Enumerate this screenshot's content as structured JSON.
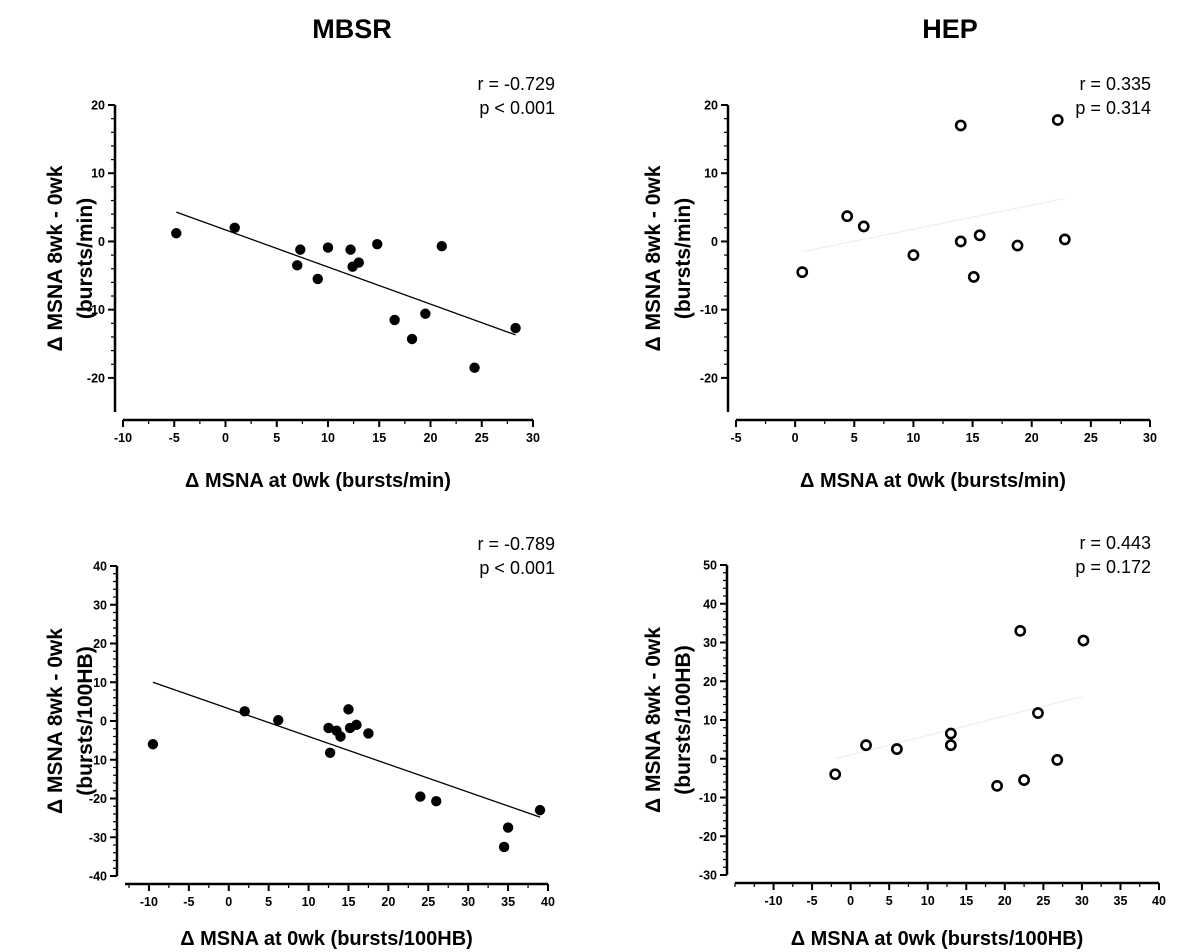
{
  "titles": {
    "left": "MBSR",
    "right": "HEP"
  },
  "chart_data": [
    {
      "type": "scatter",
      "group": "MBSR",
      "ylabel_line1": "Δ MSNA 8wk - 0wk",
      "ylabel_line2": "(bursts/min)",
      "xlabel": "Δ MSNA at 0wk (bursts/min)",
      "xlim": [
        -10,
        30
      ],
      "ylim": [
        -25,
        20
      ],
      "xticks": [
        -10,
        -5,
        0,
        5,
        10,
        15,
        20,
        25,
        30
      ],
      "yticks": [
        -20,
        -10,
        0,
        10,
        20
      ],
      "r_text": "r = -0.729",
      "p_text": "p < 0.001",
      "marker": "filled",
      "fit": [
        [
          -4.8,
          4.3
        ],
        [
          28.3,
          -13.7
        ]
      ],
      "fit_style": "solid",
      "points": [
        [
          -4.8,
          1.2
        ],
        [
          0.9,
          2.0
        ],
        [
          7.0,
          -3.5
        ],
        [
          7.3,
          -1.2
        ],
        [
          9.0,
          -5.5
        ],
        [
          10.0,
          -0.9
        ],
        [
          12.2,
          -1.2
        ],
        [
          12.4,
          -3.7
        ],
        [
          13.0,
          -3.1
        ],
        [
          14.8,
          -0.4
        ],
        [
          16.5,
          -11.5
        ],
        [
          18.2,
          -14.3
        ],
        [
          19.5,
          -10.6
        ],
        [
          21.1,
          -0.7
        ],
        [
          24.3,
          -18.5
        ],
        [
          28.3,
          -12.7
        ]
      ]
    },
    {
      "type": "scatter",
      "group": "HEP",
      "ylabel_line1": "Δ MSNA 8wk - 0wk",
      "ylabel_line2": "(bursts/min)",
      "xlabel": "Δ MSNA at 0wk (bursts/min)",
      "xlim": [
        -5,
        30
      ],
      "ylim": [
        -25,
        20
      ],
      "xticks": [
        -5,
        0,
        5,
        10,
        15,
        20,
        25,
        30
      ],
      "yticks": [
        -20,
        -10,
        0,
        10,
        20
      ],
      "r_text": "r =  0.335",
      "p_text": "p = 0.314",
      "marker": "open",
      "fit": [
        [
          0.6,
          -1.5
        ],
        [
          22.8,
          6.3
        ]
      ],
      "fit_style": "faint",
      "points": [
        [
          0.6,
          -4.5
        ],
        [
          4.4,
          3.7
        ],
        [
          5.8,
          2.2
        ],
        [
          10.0,
          -2.0
        ],
        [
          14.0,
          17.0
        ],
        [
          14.0,
          0.0
        ],
        [
          15.1,
          -5.2
        ],
        [
          15.6,
          0.9
        ],
        [
          18.8,
          -0.6
        ],
        [
          22.2,
          17.8
        ],
        [
          22.8,
          0.3
        ]
      ]
    },
    {
      "type": "scatter",
      "group": "MBSR",
      "ylabel_line1": "Δ MSNA 8wk - 0wk",
      "ylabel_line2": "(bursts/100HB)",
      "xlabel": "Δ MSNA at 0wk (bursts/100HB)",
      "xlim": [
        -13,
        40
      ],
      "ylim": [
        -40,
        40
      ],
      "xticks": [
        -10,
        -5,
        0,
        5,
        10,
        15,
        20,
        25,
        30,
        35,
        40
      ],
      "yticks": [
        -40,
        -30,
        -20,
        -10,
        0,
        10,
        20,
        30,
        40
      ],
      "r_text": "r = -0.789",
      "p_text": "p < 0.001",
      "marker": "filled",
      "fit": [
        [
          -9.5,
          10.0
        ],
        [
          39.0,
          -24.8
        ]
      ],
      "fit_style": "solid",
      "points": [
        [
          -9.5,
          -6.0
        ],
        [
          2.0,
          2.5
        ],
        [
          6.2,
          0.2
        ],
        [
          12.5,
          -1.8
        ],
        [
          12.7,
          -8.2
        ],
        [
          13.5,
          -2.5
        ],
        [
          14.0,
          -4.0
        ],
        [
          15.0,
          3.0
        ],
        [
          15.2,
          -1.8
        ],
        [
          16.0,
          -1.0
        ],
        [
          17.5,
          -3.2
        ],
        [
          24.0,
          -19.5
        ],
        [
          26.0,
          -20.7
        ],
        [
          34.5,
          -32.5
        ],
        [
          35.0,
          -27.5
        ],
        [
          39.0,
          -23.0
        ]
      ]
    },
    {
      "type": "scatter",
      "group": "HEP",
      "ylabel_line1": "Δ MSNA 8wk - 0wk",
      "ylabel_line2": "(bursts/100HB)",
      "xlabel": "Δ MSNA at 0wk (bursts/100HB)",
      "xlim": [
        -15,
        40
      ],
      "ylim": [
        -30,
        50
      ],
      "xticks": [
        -10,
        -5,
        0,
        5,
        10,
        15,
        20,
        25,
        30,
        35,
        40
      ],
      "yticks": [
        -30,
        -20,
        -10,
        0,
        10,
        20,
        30,
        40,
        50
      ],
      "r_text": "r =  0.443",
      "p_text": "p = 0.172",
      "marker": "open",
      "fit": [
        [
          -2.0,
          0.0
        ],
        [
          30.0,
          16.0
        ]
      ],
      "fit_style": "faint",
      "points": [
        [
          -2.0,
          -4.0
        ],
        [
          2.0,
          3.5
        ],
        [
          6.0,
          2.5
        ],
        [
          13.0,
          6.5
        ],
        [
          13.0,
          3.5
        ],
        [
          19.0,
          -7.0
        ],
        [
          22.0,
          33.0
        ],
        [
          22.5,
          -5.5
        ],
        [
          24.3,
          11.8
        ],
        [
          26.8,
          -0.3
        ],
        [
          30.2,
          30.5
        ]
      ]
    }
  ]
}
